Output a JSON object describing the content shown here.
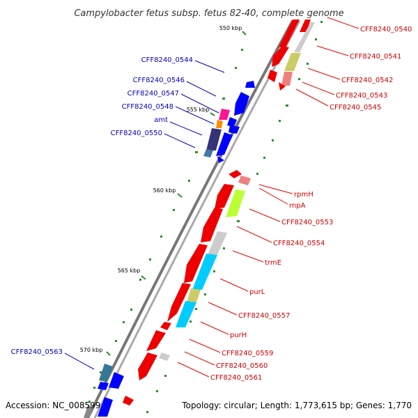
{
  "title": "Campylobacter fetus subsp. fetus 82-40, complete genome",
  "accession": "Accession: NC_008599",
  "summary": "Topology: circular; Length: 1,773,615 bp; Genes: 1,770",
  "kbp_ticks": [
    "550 kbp",
    "555 kbp",
    "560 kbp",
    "565 kbp",
    "570 kbp"
  ],
  "colors": {
    "forward_gene": "#ff0000",
    "reverse_gene": "#0000ff",
    "label_forward": "#cc0000",
    "label_reverse": "#0000bb",
    "backbone": "#999999",
    "tick": "#2e8b2e"
  },
  "right_labels": [
    "CFF8240_0540",
    "CFF8240_0541",
    "CFF8240_0542",
    "CFF8240_0543",
    "CFF8240_0545",
    "rpmH",
    "rnpA",
    "CFF8240_0553",
    "CFF8240_0554",
    "trmE",
    "purL",
    "CFF8240_0557",
    "purH",
    "CFF8240_0559",
    "CFF8240_0560",
    "CFF8240_0561"
  ],
  "left_labels": [
    "CFF8240_0544",
    "CFF8240_0546",
    "CFF8240_0547",
    "CFF8240_0548",
    "amt",
    "CFF8240_0550",
    "CFF8240_0563"
  ]
}
